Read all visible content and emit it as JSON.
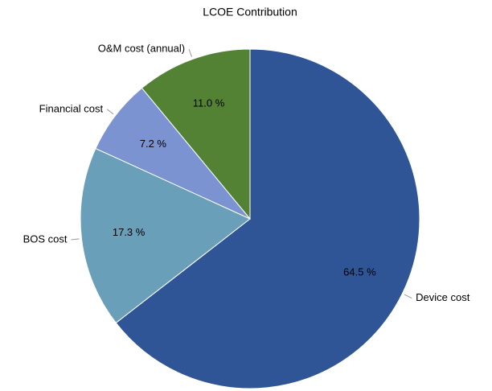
{
  "chart_data": {
    "type": "pie",
    "title": "LCOE Contribution",
    "categories": [
      "Device cost",
      "BOS cost",
      "Financial cost",
      "O&M cost (annual)"
    ],
    "values": [
      64.5,
      17.3,
      7.2,
      11.0
    ],
    "value_labels": [
      "64.5 %",
      "17.3 %",
      "7.2 %",
      "11.0 %"
    ],
    "colors": [
      "#2f5597",
      "#6a9fba",
      "#7b93d0",
      "#548235"
    ]
  }
}
